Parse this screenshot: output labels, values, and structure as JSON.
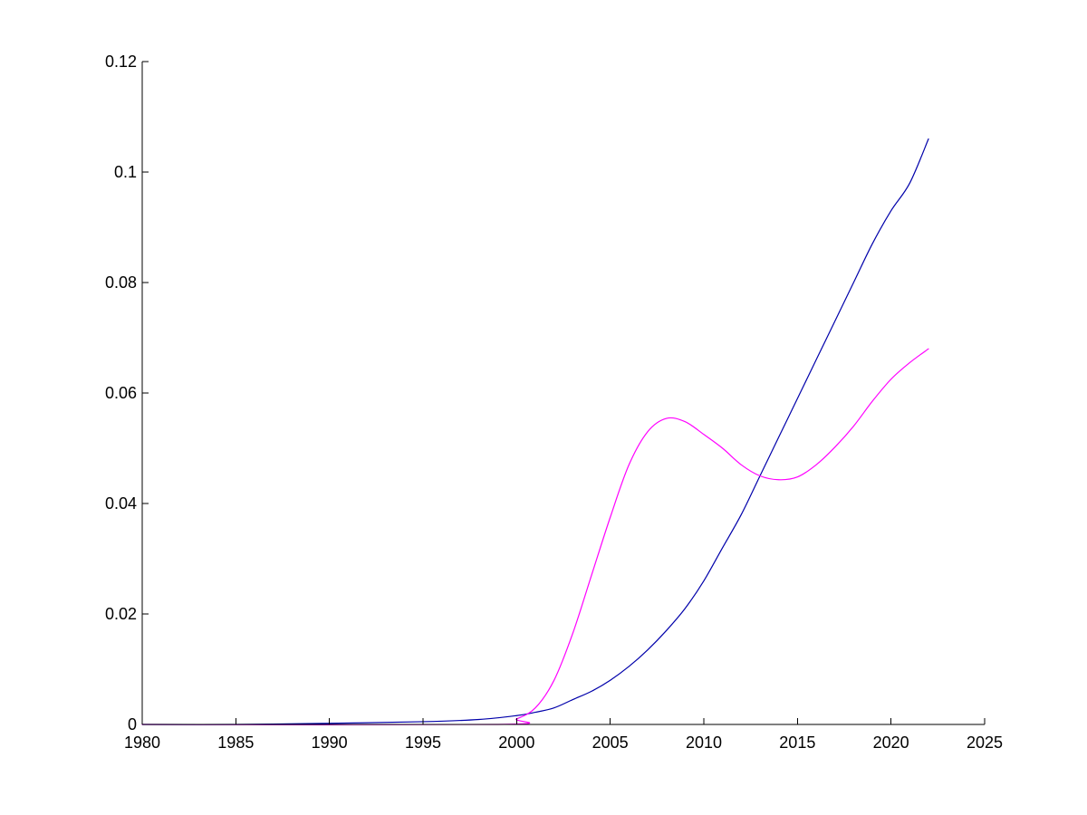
{
  "chart_data": {
    "type": "line",
    "title": "",
    "xlabel": "",
    "ylabel": "",
    "xlim": [
      1980,
      2025
    ],
    "ylim": [
      0,
      0.12
    ],
    "xticks": [
      1980,
      1985,
      1990,
      1995,
      2000,
      2005,
      2010,
      2015,
      2020,
      2025
    ],
    "xtick_labels": [
      "1980",
      "1985",
      "1990",
      "1995",
      "2000",
      "2005",
      "2010",
      "2015",
      "2020",
      "2025"
    ],
    "yticks": [
      0,
      0.02,
      0.04,
      0.06,
      0.08,
      0.1,
      0.12
    ],
    "ytick_labels": [
      "0",
      "0.02",
      "0.04",
      "0.06",
      "0.08",
      "0.1",
      "0.12"
    ],
    "grid": false,
    "legend": "none",
    "series": [
      {
        "color": "#0000aa",
        "x": [
          1980,
          1985,
          1990,
          1995,
          1998,
          2000,
          2001,
          2002,
          2003,
          2004,
          2005,
          2006,
          2007,
          2008,
          2009,
          2010,
          2011,
          2012,
          2013,
          2014,
          2015,
          2016,
          2017,
          2018,
          2019,
          2020,
          2021,
          2022
        ],
        "y": [
          0,
          0,
          0.0002,
          0.0005,
          0.0009,
          0.0016,
          0.0022,
          0.003,
          0.0045,
          0.006,
          0.008,
          0.0105,
          0.0135,
          0.017,
          0.021,
          0.026,
          0.032,
          0.038,
          0.045,
          0.052,
          0.059,
          0.066,
          0.073,
          0.08,
          0.087,
          0.093,
          0.098,
          0.106
        ]
      },
      {
        "color": "#ff00ff",
        "x": [
          1980,
          1999,
          2000,
          2001,
          2002,
          2003,
          2004,
          2005,
          2006,
          2007,
          2008,
          2009,
          2010,
          2011,
          2012,
          2013,
          2014,
          2015,
          2016,
          2017,
          2018,
          2019,
          2020,
          2021,
          2022
        ],
        "y": [
          0,
          0,
          0.001,
          0.003,
          0.008,
          0.0165,
          0.027,
          0.0375,
          0.047,
          0.053,
          0.0554,
          0.0548,
          0.0525,
          0.05,
          0.047,
          0.045,
          0.0443,
          0.0448,
          0.047,
          0.0502,
          0.054,
          0.0585,
          0.0625,
          0.0655,
          0.068
        ]
      }
    ]
  }
}
